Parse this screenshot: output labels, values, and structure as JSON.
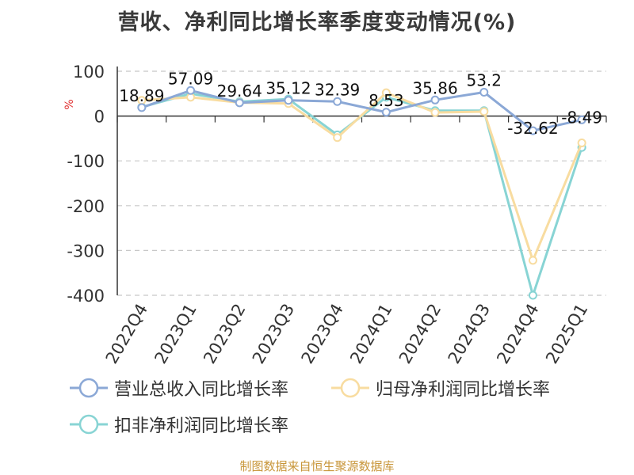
{
  "title": "营收、净利同比增长率季度变动情况(%)",
  "source": "制图数据来自恒生聚源数据库",
  "chart_data": {
    "type": "line",
    "title": "营收、净利同比增长率季度变动情况(%)",
    "ylabel": "%",
    "ylim": [
      -400,
      100
    ],
    "yticks": [
      100,
      0,
      -100,
      -200,
      -300,
      -400
    ],
    "grid": true,
    "legend_position": "bottom",
    "categories": [
      "2022Q4",
      "2023Q1",
      "2023Q2",
      "2023Q3",
      "2023Q4",
      "2024Q1",
      "2024Q2",
      "2024Q3",
      "2024Q4",
      "2025Q1"
    ],
    "series": [
      {
        "name": "营业总收入同比增长率",
        "color": "#8ba8d6",
        "values": [
          18.89,
          57.09,
          29.64,
          35.12,
          32.39,
          8.53,
          35.86,
          53.2,
          -32.62,
          -8.49
        ],
        "labels": [
          "18.89",
          "57.09",
          "29.64",
          "35.12",
          "32.39",
          "8.53",
          "35.86",
          "53.2",
          "-32.62",
          "-8.49"
        ]
      },
      {
        "name": "归母净利润同比增长率",
        "color": "#f8dca0",
        "values": [
          35,
          42,
          30,
          28,
          -48,
          52,
          8,
          10,
          -322,
          -60
        ]
      },
      {
        "name": "扣非净利润同比增长率",
        "color": "#88d4d4",
        "values": [
          20,
          50,
          32,
          38,
          -42,
          42,
          12,
          12,
          -400,
          -70
        ]
      }
    ]
  }
}
